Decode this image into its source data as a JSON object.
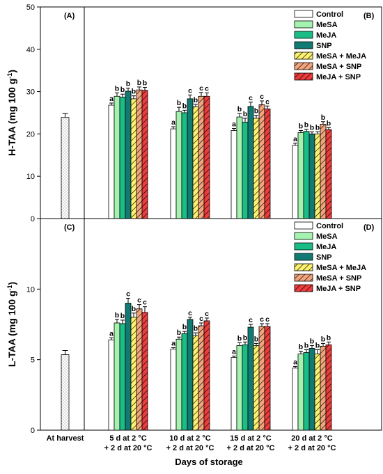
{
  "colors": {
    "Control": "#ffffff",
    "MeSA": "#a5f2b0",
    "MeJA": "#1bbd87",
    "SNP": "#117a72",
    "MeSA + MeJA": "#fdf26f",
    "MeSA + SNP": "#f2a57c",
    "MeJA + SNP": "#ee3b3b"
  },
  "chart_data": [
    {
      "type": "bar",
      "panel_labels": [
        "(A)",
        "(B)"
      ],
      "ylabel": "H-TAA (mg 100 g",
      "ylabel_sup": "-1",
      "ylabel_close": ")",
      "ylim": [
        0,
        50
      ],
      "yticks": [
        "0",
        "10",
        "20",
        "30",
        "40",
        "50"
      ],
      "at_harvest": {
        "category": "At harvest",
        "value": 23.9,
        "error": 0.9
      },
      "categories": [
        "5 d at 2 °C + 2 d at 20 °C",
        "10 d at 2 °C + 2 d at 20 °C",
        "15 d at 2 °C + 2 d at 20 °C",
        "20 d at 2 °C + 2 d at 20 °C"
      ],
      "series": [
        {
          "name": "Control",
          "values": [
            26.8,
            21.2,
            20.8,
            17.3
          ],
          "errors": [
            0.5,
            0.5,
            0.5,
            0.5
          ],
          "sig": [
            "a",
            "a",
            "a",
            "a"
          ]
        },
        {
          "name": "MeSA",
          "values": [
            28.9,
            25.3,
            24.0,
            20.3
          ],
          "errors": [
            0.8,
            1.0,
            0.8,
            0.5
          ],
          "sig": [
            "b",
            "b",
            "b",
            "b"
          ]
        },
        {
          "name": "MeJA",
          "values": [
            28.7,
            25.0,
            22.8,
            20.6
          ],
          "errors": [
            0.7,
            0.6,
            0.9,
            0.5
          ],
          "sig": [
            "b",
            "b",
            "b",
            "b"
          ]
        },
        {
          "name": "SNP",
          "values": [
            30.1,
            28.3,
            26.5,
            20.0
          ],
          "errors": [
            0.7,
            0.9,
            1.0,
            0.5
          ],
          "sig": [
            "b",
            "c",
            "c",
            "b"
          ]
        },
        {
          "name": "MeSA + MeJA",
          "values": [
            28.3,
            26.4,
            23.7,
            20.0
          ],
          "errors": [
            0.7,
            0.6,
            0.7,
            0.5
          ],
          "sig": [
            "b",
            "b",
            "b",
            "b"
          ]
        },
        {
          "name": "MeSA + SNP",
          "values": [
            30.4,
            28.9,
            26.9,
            22.3
          ],
          "errors": [
            0.7,
            0.9,
            0.9,
            0.6
          ],
          "sig": [
            "b",
            "c",
            "c",
            "b"
          ]
        },
        {
          "name": "MeJA + SNP",
          "values": [
            30.3,
            28.9,
            25.9,
            21.0
          ],
          "errors": [
            0.7,
            0.8,
            0.7,
            0.5
          ],
          "sig": [
            "b",
            "c",
            "c",
            "b"
          ]
        }
      ],
      "legend": "top-right"
    },
    {
      "type": "bar",
      "panel_labels": [
        "(C)",
        "(D)"
      ],
      "ylabel": "L-TAA (mg 100 g",
      "ylabel_sup": "-1",
      "ylabel_close": ")",
      "ylim": [
        0,
        15
      ],
      "yticks": [
        "0",
        "5",
        "10"
      ],
      "at_harvest": {
        "category": "At harvest",
        "value": 5.35,
        "error": 0.3
      },
      "categories": [
        "5 d at 2 °C + 2 d at 20 °C",
        "10 d at 2 °C + 2 d at 20 °C",
        "15 d at 2 °C + 2 d at 20 °C",
        "20 d at 2 °C + 2 d at 20 °C"
      ],
      "series": [
        {
          "name": "Control",
          "values": [
            6.4,
            5.75,
            5.15,
            4.4
          ],
          "errors": [
            0.15,
            0.1,
            0.1,
            0.12
          ],
          "sig": [
            "a",
            "a",
            "a",
            "a"
          ]
        },
        {
          "name": "MeSA",
          "values": [
            7.6,
            6.45,
            6.0,
            5.4
          ],
          "errors": [
            0.25,
            0.15,
            0.2,
            0.2
          ],
          "sig": [
            "b",
            "b",
            "b",
            "b"
          ]
        },
        {
          "name": "MeJA",
          "values": [
            7.55,
            6.85,
            6.05,
            5.5
          ],
          "errors": [
            0.25,
            0.15,
            0.2,
            0.2
          ],
          "sig": [
            "b",
            "b",
            "b",
            "b"
          ]
        },
        {
          "name": "SNP",
          "values": [
            9.0,
            7.85,
            7.3,
            5.8
          ],
          "errors": [
            0.35,
            0.15,
            0.2,
            0.2
          ],
          "sig": [
            "c",
            "c",
            "c",
            "b"
          ]
        },
        {
          "name": "MeSA + MeJA",
          "values": [
            8.0,
            6.7,
            6.0,
            5.4
          ],
          "errors": [
            0.3,
            0.2,
            0.15,
            0.3
          ],
          "sig": [
            "b",
            "b",
            "b",
            "b"
          ]
        },
        {
          "name": "MeSA + SNP",
          "values": [
            8.6,
            7.4,
            7.35,
            5.95
          ],
          "errors": [
            0.3,
            0.2,
            0.2,
            0.2
          ],
          "sig": [
            "c",
            "c",
            "c",
            "b"
          ]
        },
        {
          "name": "MeJA + SNP",
          "values": [
            8.35,
            7.75,
            7.35,
            6.05
          ],
          "errors": [
            0.4,
            0.2,
            0.2,
            0.2
          ],
          "sig": [
            "c",
            "c",
            "c",
            "b"
          ]
        }
      ],
      "legend": "top-right"
    }
  ],
  "x_categories": {
    "at_harvest": "At harvest",
    "cat_lines": [
      [
        "5 d at 2 °C",
        "+ 2 d at 20 °C"
      ],
      [
        "10 d at 2 °C",
        "+ 2 d at 20 °C"
      ],
      [
        "15 d at 2 °C",
        "+ 2 d at 20 °C"
      ],
      [
        "20 d at 2 °C",
        "+ 2 d at 20 °C"
      ]
    ]
  },
  "xlabel": "Days of storage"
}
